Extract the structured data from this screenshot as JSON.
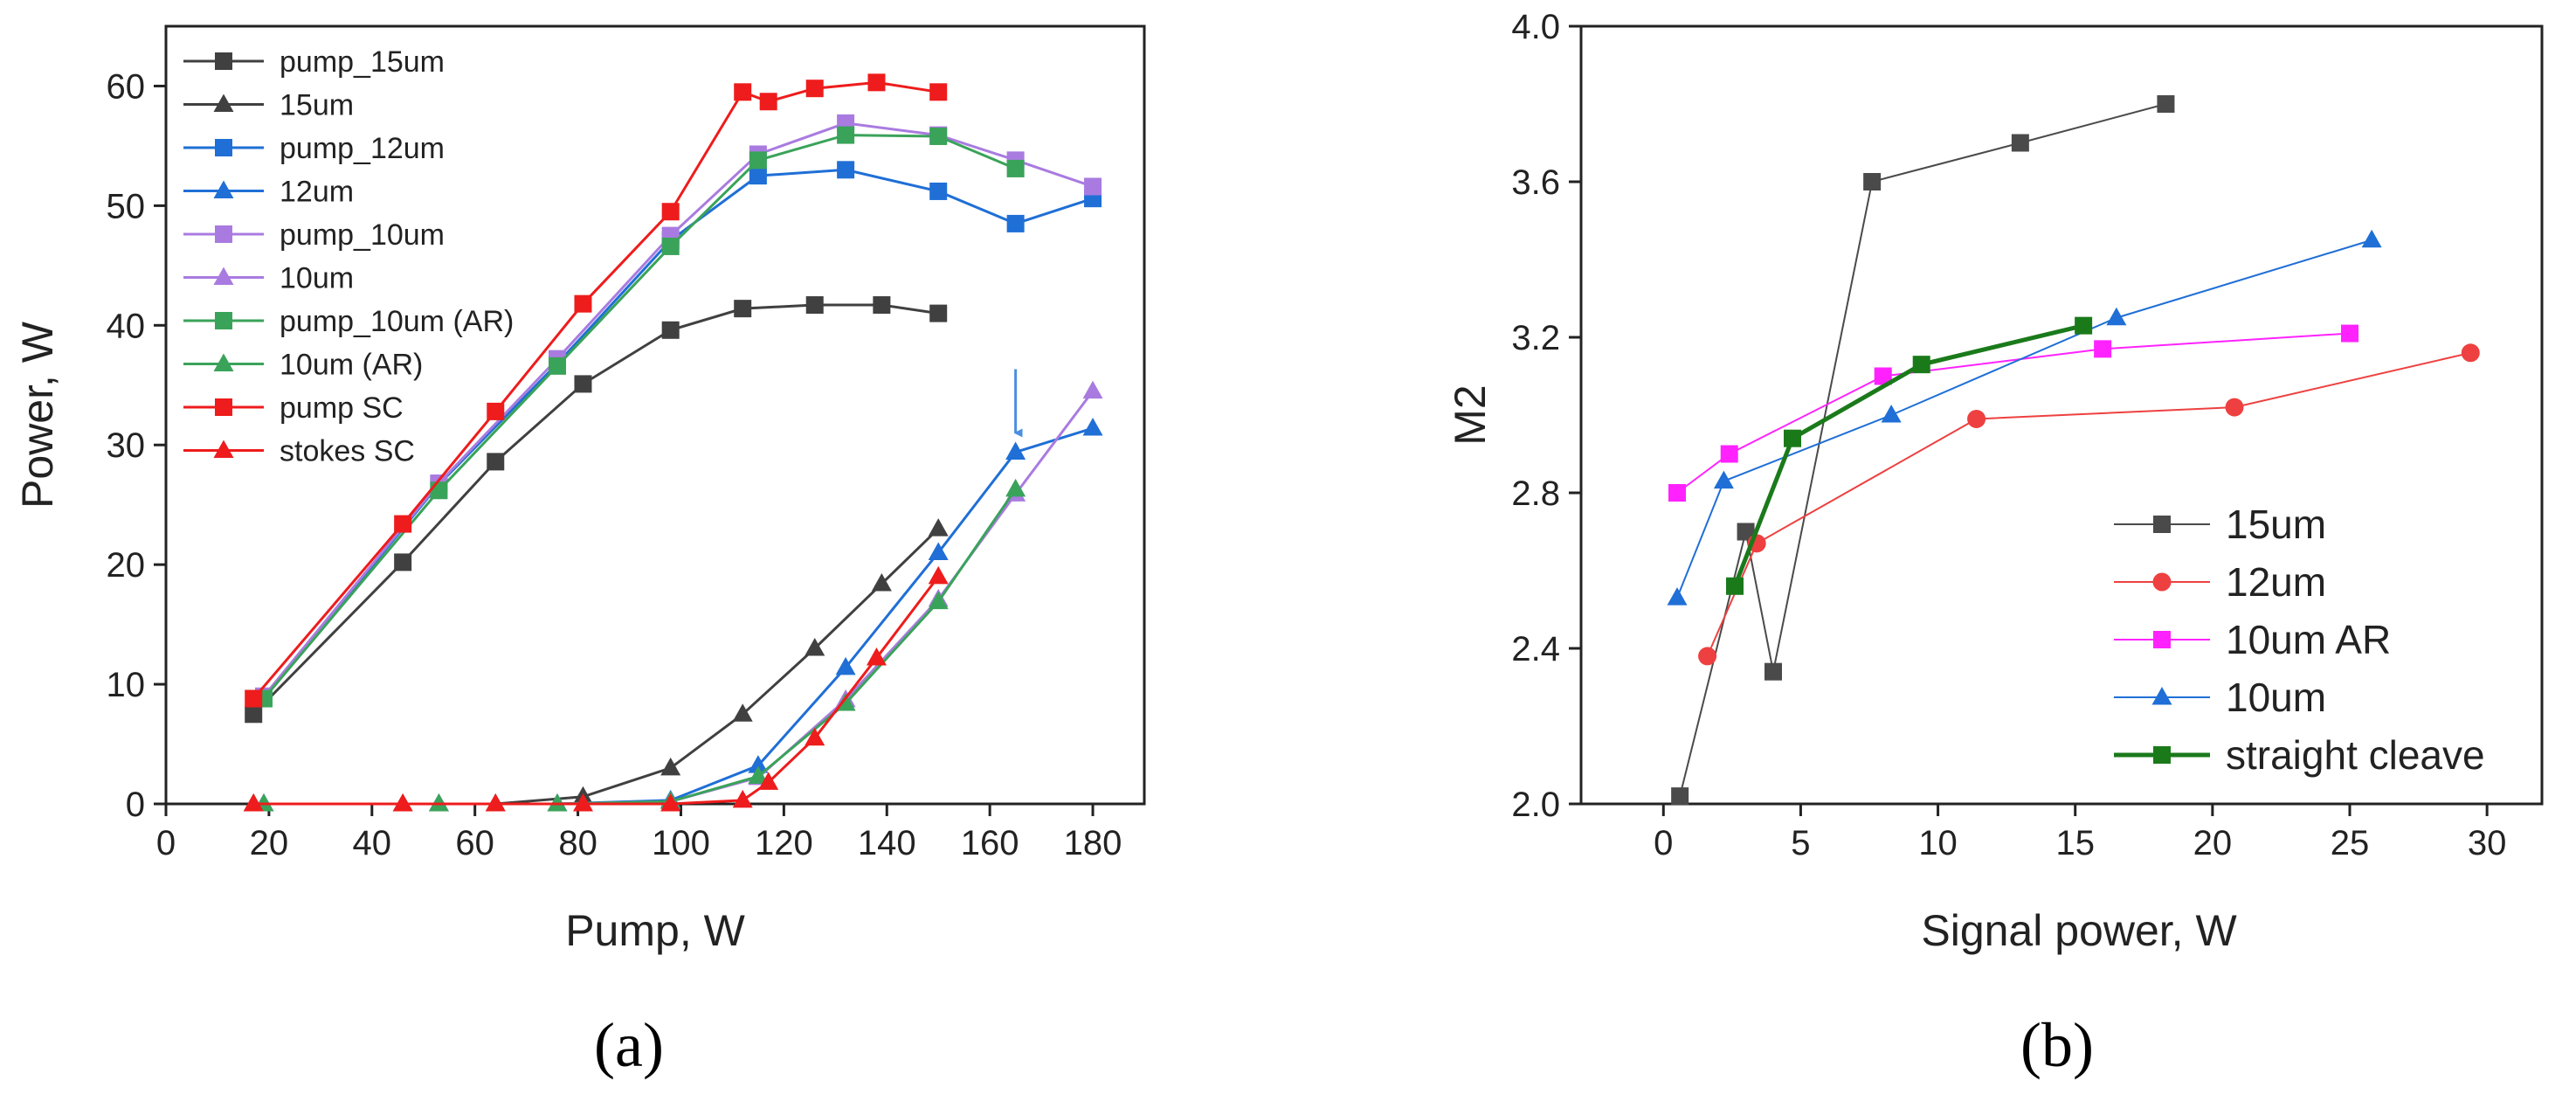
{
  "chart_data": [
    {
      "type": "line",
      "panel_label": "(a)",
      "xlabel": "Pump, W",
      "ylabel": "Power, W",
      "xlim": [
        0,
        190
      ],
      "ylim": [
        0,
        65
      ],
      "xticks": [
        0,
        20,
        40,
        60,
        80,
        100,
        120,
        140,
        160,
        180
      ],
      "yticks": [
        0,
        10,
        20,
        30,
        40,
        50,
        60
      ],
      "grid": false,
      "legend_position": "top-left",
      "annotation": "arrow pointing at 12um point near x=165",
      "series": [
        {
          "name": "pump_15um",
          "marker": "square",
          "color": "#404040",
          "x": [
            17,
            46,
            64,
            81,
            98,
            112,
            126,
            139,
            150
          ],
          "y": [
            7.5,
            20.2,
            28.6,
            35.1,
            39.6,
            41.4,
            41.7,
            41.7,
            41.0
          ]
        },
        {
          "name": "15um",
          "marker": "triangle",
          "color": "#404040",
          "x": [
            17,
            46,
            64,
            81,
            98,
            112,
            126,
            139,
            150
          ],
          "y": [
            0,
            0,
            0,
            0.6,
            3.0,
            7.5,
            13.0,
            18.4,
            23.0
          ]
        },
        {
          "name": "pump_12um",
          "marker": "square",
          "color": "#1f6fd6",
          "x": [
            19,
            53,
            76,
            98,
            115,
            132,
            150,
            165,
            180
          ],
          "y": [
            8.8,
            26.7,
            36.8,
            47.1,
            52.5,
            53.0,
            51.2,
            48.5,
            50.6
          ]
        },
        {
          "name": "12um",
          "marker": "triangle",
          "color": "#1f6fd6",
          "x": [
            19,
            53,
            76,
            98,
            115,
            132,
            150,
            165,
            180
          ],
          "y": [
            0,
            0,
            0,
            0.3,
            3.2,
            11.4,
            21.0,
            29.4,
            31.4
          ]
        },
        {
          "name": "pump_10um",
          "marker": "square",
          "color": "#a97be0",
          "x": [
            19,
            53,
            76,
            98,
            115,
            132,
            150,
            165,
            180
          ],
          "y": [
            9.0,
            26.8,
            37.2,
            47.5,
            54.3,
            56.9,
            55.9,
            53.8,
            51.6
          ]
        },
        {
          "name": "10um",
          "marker": "triangle",
          "color": "#a97be0",
          "x": [
            19,
            53,
            76,
            98,
            115,
            132,
            150,
            165,
            180
          ],
          "y": [
            0,
            0,
            0,
            0.2,
            2.2,
            8.7,
            17.1,
            25.9,
            34.5
          ]
        },
        {
          "name": "pump_10um (AR)",
          "marker": "square",
          "color": "#3aa35a",
          "x": [
            19,
            53,
            76,
            98,
            115,
            132,
            150,
            165
          ],
          "y": [
            8.8,
            26.2,
            36.6,
            46.6,
            53.8,
            55.9,
            55.8,
            53.1
          ]
        },
        {
          "name": "10um (AR)",
          "marker": "triangle",
          "color": "#3aa35a",
          "x": [
            19,
            53,
            76,
            98,
            115,
            132,
            150,
            165
          ],
          "y": [
            0,
            0,
            0,
            0.2,
            2.3,
            8.4,
            16.9,
            26.3
          ]
        },
        {
          "name": "pump SC",
          "marker": "square",
          "color": "#ee1c1c",
          "x": [
            17,
            46,
            64,
            81,
            98,
            112,
            117,
            126,
            138,
            150
          ],
          "y": [
            8.8,
            23.4,
            32.8,
            41.8,
            49.5,
            59.5,
            58.7,
            59.8,
            60.3,
            59.5
          ]
        },
        {
          "name": "stokes SC",
          "marker": "triangle",
          "color": "#ee1c1c",
          "x": [
            17,
            46,
            64,
            81,
            98,
            112,
            117,
            126,
            138,
            150
          ],
          "y": [
            0,
            0,
            0,
            0,
            0,
            0.3,
            1.8,
            5.5,
            12.2,
            19.0
          ]
        }
      ]
    },
    {
      "type": "line",
      "panel_label": "(b)",
      "xlabel": "Signal power, W",
      "ylabel": "M2",
      "xlim": [
        -3,
        32
      ],
      "ylim": [
        2.0,
        4.0
      ],
      "xticks": [
        0,
        5,
        10,
        15,
        20,
        25,
        30
      ],
      "yticks": [
        2.0,
        2.4,
        2.8,
        3.2,
        3.6,
        4.0
      ],
      "grid": false,
      "legend_position": "bottom-right",
      "series": [
        {
          "name": "15um",
          "marker": "square",
          "color": "#4a4a4a",
          "line_width": 2,
          "x": [
            0.6,
            3.0,
            4.0,
            7.6,
            13.0,
            18.3
          ],
          "y": [
            2.02,
            2.7,
            2.34,
            3.6,
            3.7,
            3.8
          ]
        },
        {
          "name": "12um",
          "marker": "circle",
          "color": "#ee4040",
          "line_width": 2,
          "x": [
            1.6,
            3.4,
            11.4,
            20.8,
            29.4
          ],
          "y": [
            2.38,
            2.67,
            2.99,
            3.02,
            3.16
          ]
        },
        {
          "name": "10um  AR",
          "marker": "square",
          "color": "#ff22ff",
          "line_width": 2,
          "x": [
            0.5,
            2.4,
            8.0,
            16.0,
            25.0
          ],
          "y": [
            2.8,
            2.9,
            3.1,
            3.17,
            3.21
          ]
        },
        {
          "name": "10um",
          "marker": "triangle",
          "color": "#1f6fd6",
          "line_width": 2,
          "x": [
            0.5,
            2.2,
            8.3,
            16.5,
            25.8
          ],
          "y": [
            2.53,
            2.83,
            3.0,
            3.25,
            3.45
          ]
        },
        {
          "name": "straight cleave",
          "marker": "square",
          "color": "#1a7a1a",
          "line_width": 5,
          "x": [
            2.6,
            4.7,
            9.4,
            15.3
          ],
          "y": [
            2.56,
            2.94,
            3.13,
            3.23
          ]
        }
      ]
    }
  ]
}
